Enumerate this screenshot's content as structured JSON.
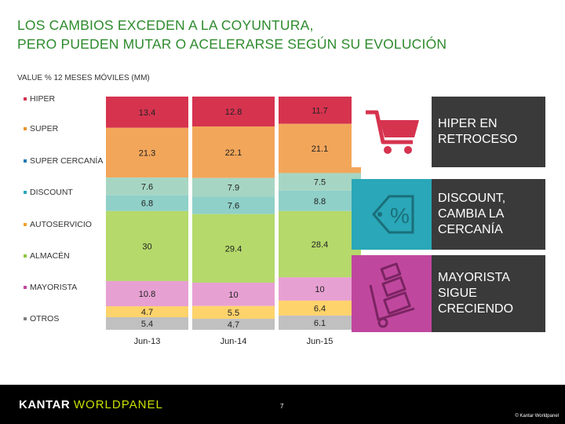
{
  "header": {
    "title_line1": "LOS CAMBIOS EXCEDEN A LA COYUNTURA,",
    "title_line2": "PERO PUEDEN MUTAR O ACELERARSE SEGÚN SU EVOLUCIÓN",
    "subtitle": "VALUE % 12 MESES MÓVILES (MM)"
  },
  "legend": [
    {
      "label": "HIPER",
      "color": "#d6334f"
    },
    {
      "label": "SUPER",
      "color": "#e8922b"
    },
    {
      "label": "SUPER CERCANÍA",
      "color": "#1f77b4"
    },
    {
      "label": "DISCOUNT",
      "color": "#2aa7b8"
    },
    {
      "label": "AUTOSERVICIO",
      "color": "#f0a030"
    },
    {
      "label": "ALMACÉN",
      "color": "#8cc63f"
    },
    {
      "label": "MAYORISTA",
      "color": "#c0479e"
    },
    {
      "label": "OTROS",
      "color": "#7f7f7f"
    }
  ],
  "chart_data": {
    "type": "bar",
    "stacked": true,
    "categories": [
      "Jun-13",
      "Jun-14",
      "Jun-15"
    ],
    "series": [
      {
        "name": "HIPER",
        "color": "#d6334f",
        "values": [
          13.4,
          12.8,
          11.7
        ]
      },
      {
        "name": "SUPER",
        "color": "#f2a65a",
        "values": [
          21.3,
          22.1,
          21.1
        ]
      },
      {
        "name": "SUPER CERCANÍA",
        "color": "#a6d6c3",
        "values": [
          7.6,
          7.9,
          7.5
        ]
      },
      {
        "name": "DISCOUNT",
        "color": "#8fd0c8",
        "values": [
          6.8,
          7.6,
          8.8
        ]
      },
      {
        "name": "ALMACÉN",
        "color": "#b5d96a",
        "values": [
          30,
          29.4,
          28.4
        ]
      },
      {
        "name": "MAYORISTA",
        "color": "#e7a0d2",
        "values": [
          10.8,
          10,
          10
        ]
      },
      {
        "name": "AUTOSERVICIO",
        "color": "#ffd36b",
        "values": [
          4.7,
          5.5,
          6.4
        ]
      },
      {
        "name": "OTROS",
        "color": "#c0c0c0",
        "values": [
          5.4,
          4.7,
          6.1
        ]
      }
    ],
    "labels": [
      [
        "13.4",
        "21.3",
        "7.6",
        "6.8",
        "30",
        "10.8",
        "4.7",
        "5.4"
      ],
      [
        "12.8",
        "22.1",
        "7.9",
        "7.6",
        "29.4",
        "10",
        "5.5",
        "4.7"
      ],
      [
        "11.7",
        "21.1",
        "7.5",
        "8.8",
        "28.4",
        "10",
        "6.4",
        "6.1"
      ]
    ]
  },
  "panels": [
    {
      "text": "HIPER EN RETROCESO",
      "color": "#d6334f",
      "icon": "shopping-cart-icon"
    },
    {
      "text": "DISCOUNT, CAMBIA LA CERCANÍA",
      "color": "#2aa7b8",
      "icon": "percent-tag-icon"
    },
    {
      "text": "MAYORISTA SIGUE CRECIENDO",
      "color": "#c0479e",
      "icon": "hand-truck-icon"
    }
  ],
  "footer": {
    "logo_part1": "KANTAR ",
    "logo_part2": "WORLDPANEL",
    "page_number": "7",
    "copyright": "© Kantar Worldpanel"
  }
}
